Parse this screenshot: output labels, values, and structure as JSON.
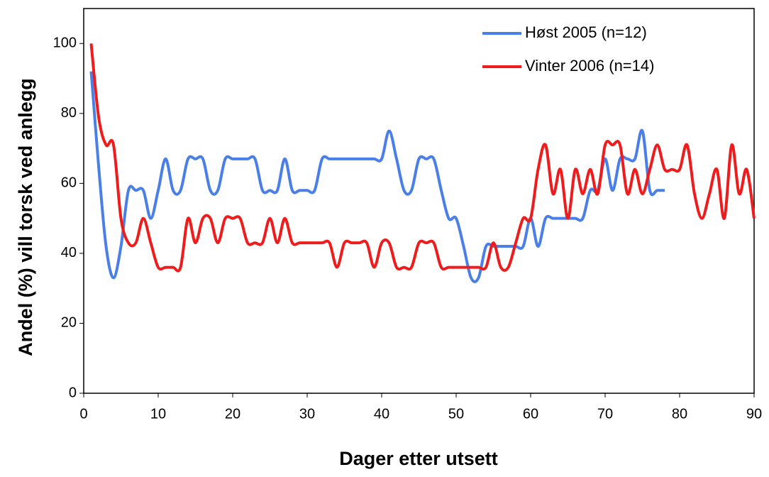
{
  "chart_data": {
    "type": "line",
    "xlabel": "Dager etter utsett",
    "ylabel": "Andel (%) vill torsk ved anlegg",
    "xlim": [
      0,
      90
    ],
    "xticks": [
      0,
      10,
      20,
      30,
      40,
      50,
      60,
      70,
      80,
      90
    ],
    "ylim": [
      0,
      110
    ],
    "yticks": [
      0,
      20,
      40,
      60,
      80,
      100
    ],
    "legend": "upper right",
    "series": [
      {
        "name": "Høst 2005 (n=12)",
        "color": "#4a7fe8",
        "x": [
          1,
          2,
          3,
          4,
          5,
          6,
          7,
          8,
          9,
          10,
          11,
          12,
          13,
          14,
          15,
          16,
          17,
          18,
          19,
          20,
          21,
          22,
          23,
          24,
          25,
          26,
          27,
          28,
          29,
          30,
          31,
          32,
          33,
          34,
          35,
          36,
          37,
          38,
          39,
          40,
          41,
          42,
          43,
          44,
          45,
          46,
          47,
          48,
          49,
          50,
          51,
          52,
          53,
          54,
          55,
          56,
          57,
          58,
          59,
          60,
          61,
          62,
          63,
          64,
          65,
          66,
          67,
          68,
          69,
          70,
          71,
          72,
          73,
          74,
          75,
          76,
          77,
          78
        ],
        "values": [
          92,
          65,
          42,
          33,
          42,
          58,
          58,
          58,
          50,
          58,
          67,
          58,
          58,
          67,
          67,
          67,
          58,
          58,
          67,
          67,
          67,
          67,
          67,
          58,
          58,
          58,
          67,
          58,
          58,
          58,
          58,
          67,
          67,
          67,
          67,
          67,
          67,
          67,
          67,
          67,
          75,
          67,
          58,
          58,
          67,
          67,
          67,
          58,
          50,
          50,
          42,
          33,
          33,
          42,
          42,
          42,
          42,
          42,
          42,
          50,
          42,
          50,
          50,
          50,
          50,
          50,
          50,
          58,
          58,
          67,
          58,
          67,
          67,
          67,
          75,
          58,
          58,
          58
        ]
      },
      {
        "name": "Vinter 2006 (n=14)",
        "color": "#ee1c1c",
        "x": [
          1,
          2,
          3,
          4,
          5,
          6,
          7,
          8,
          9,
          10,
          11,
          12,
          13,
          14,
          15,
          16,
          17,
          18,
          19,
          20,
          21,
          22,
          23,
          24,
          25,
          26,
          27,
          28,
          29,
          30,
          31,
          32,
          33,
          34,
          35,
          36,
          37,
          38,
          39,
          40,
          41,
          42,
          43,
          44,
          45,
          46,
          47,
          48,
          49,
          50,
          51,
          52,
          53,
          54,
          55,
          56,
          57,
          58,
          59,
          60,
          61,
          62,
          63,
          64,
          65,
          66,
          67,
          68,
          69,
          70,
          71,
          72,
          73,
          74,
          75,
          76,
          77,
          78,
          79,
          80,
          81,
          82,
          83,
          84,
          85,
          86,
          87,
          88,
          89,
          90
        ],
        "values": [
          100,
          79,
          71,
          71,
          50,
          43,
          43,
          50,
          43,
          36,
          36,
          36,
          36,
          50,
          43,
          50,
          50,
          43,
          50,
          50,
          50,
          43,
          43,
          43,
          50,
          43,
          50,
          43,
          43,
          43,
          43,
          43,
          43,
          36,
          43,
          43,
          43,
          43,
          36,
          43,
          43,
          36,
          36,
          36,
          43,
          43,
          43,
          36,
          36,
          36,
          36,
          36,
          36,
          36,
          43,
          36,
          36,
          43,
          50,
          50,
          64,
          71,
          57,
          64,
          50,
          64,
          57,
          64,
          57,
          71,
          71,
          71,
          57,
          64,
          57,
          64,
          71,
          64,
          64,
          64,
          71,
          57,
          50,
          57,
          64,
          50,
          71,
          57,
          64,
          50
        ]
      }
    ]
  }
}
